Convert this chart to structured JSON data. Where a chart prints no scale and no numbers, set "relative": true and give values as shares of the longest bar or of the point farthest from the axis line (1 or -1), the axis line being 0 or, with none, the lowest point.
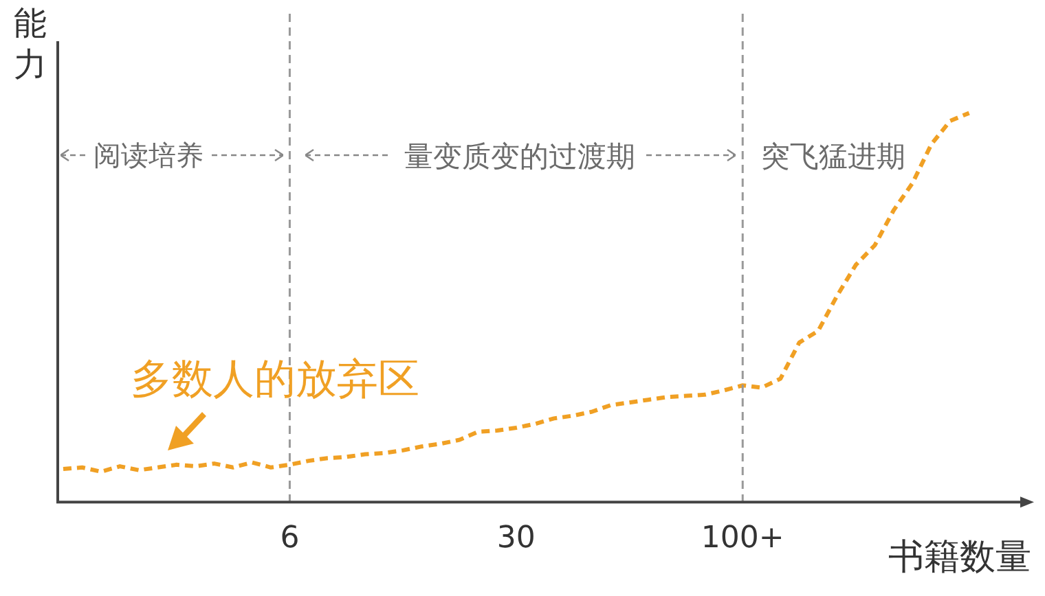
{
  "chart_data": {
    "type": "line",
    "relative": true,
    "xlabel": "书籍数量",
    "ylabel": "能力",
    "categories": [
      null,
      null,
      null,
      null,
      null,
      null,
      null,
      null,
      null,
      null,
      null,
      null,
      "6",
      null,
      null,
      null,
      null,
      null,
      null,
      null,
      null,
      null,
      null,
      null,
      "30",
      null,
      null,
      null,
      null,
      null,
      null,
      null,
      null,
      null,
      null,
      null,
      "100+",
      null,
      null,
      null,
      null,
      null,
      null,
      null,
      null,
      null,
      null,
      null,
      null,
      null,
      null,
      null
    ],
    "series": [
      {
        "color": "#f0a024",
        "values": [
          0.085,
          0.089,
          0.078,
          0.092,
          0.082,
          0.089,
          0.096,
          0.092,
          0.099,
          0.089,
          0.102,
          0.089,
          0.096,
          0.106,
          0.113,
          0.116,
          0.123,
          0.126,
          0.133,
          0.143,
          0.15,
          0.16,
          0.181,
          0.184,
          0.191,
          0.201,
          0.215,
          0.222,
          0.232,
          0.249,
          0.256,
          0.263,
          0.27,
          0.273,
          0.276,
          0.287,
          0.3,
          0.294,
          0.317,
          0.41,
          0.44,
          0.53,
          0.61,
          0.66,
          0.75,
          0.82,
          0.92,
          0.98,
          1,
          null,
          null,
          null
        ]
      }
    ],
    "ref_lines": [
      {
        "axis": "x",
        "value": "6",
        "color": "#999999",
        "line_style": "dashed"
      },
      {
        "axis": "x",
        "value": "100+",
        "color": "#999999",
        "line_style": "dashed"
      }
    ],
    "annotations": [
      "阅读培养",
      "量变质变的过渡期",
      "突飞猛进期",
      "多数人的放弃区"
    ],
    "line_style": "dashed",
    "marker": "none",
    "grid": false,
    "legend": false
  }
}
